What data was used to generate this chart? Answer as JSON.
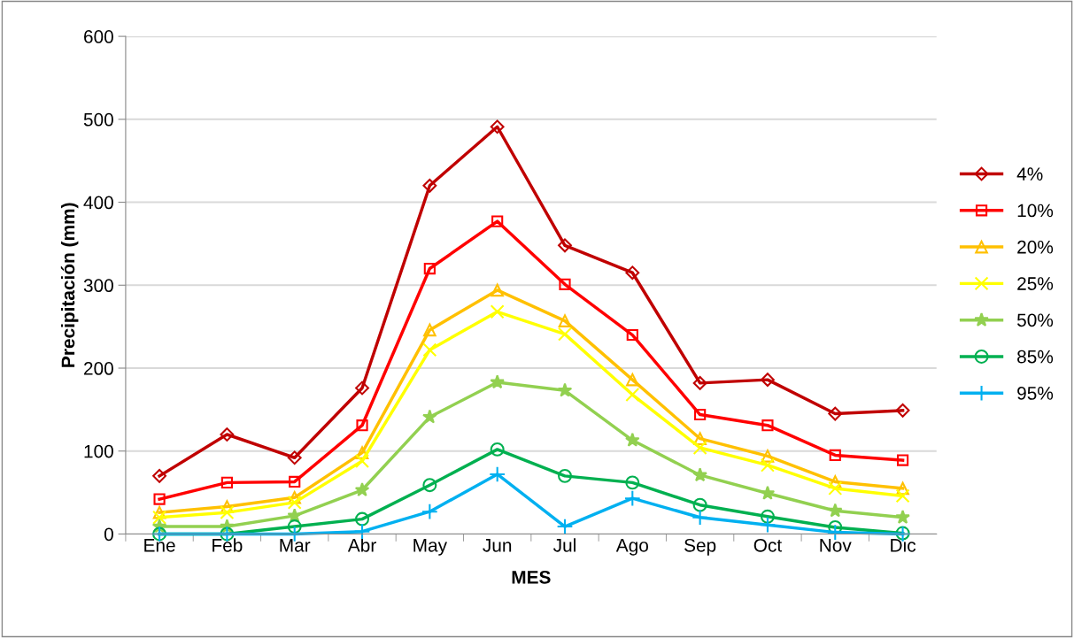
{
  "chart_data": {
    "type": "line",
    "xlabel": "MES",
    "ylabel": "Precipitación (mm)",
    "categories": [
      "Ene",
      "Feb",
      "Mar",
      "Abr",
      "May",
      "Jun",
      "Jul",
      "Ago",
      "Sep",
      "Oct",
      "Nov",
      "Dic"
    ],
    "series": [
      {
        "name": "4%",
        "color": "#c00000",
        "marker": "diamond",
        "values": [
          70,
          120,
          92,
          176,
          420,
          491,
          348,
          315,
          182,
          186,
          145,
          149
        ]
      },
      {
        "name": "10%",
        "color": "#ff0000",
        "marker": "square",
        "values": [
          42,
          62,
          63,
          131,
          320,
          377,
          301,
          240,
          144,
          131,
          95,
          89
        ]
      },
      {
        "name": "20%",
        "color": "#ffc000",
        "marker": "triangle",
        "values": [
          26,
          33,
          44,
          98,
          246,
          294,
          257,
          186,
          115,
          94,
          63,
          55
        ]
      },
      {
        "name": "25%",
        "color": "#ffff00",
        "marker": "cross",
        "values": [
          20,
          26,
          38,
          88,
          222,
          268,
          241,
          168,
          104,
          83,
          55,
          46
        ]
      },
      {
        "name": "50%",
        "color": "#92d050",
        "marker": "star",
        "values": [
          9,
          9,
          22,
          53,
          141,
          183,
          173,
          113,
          71,
          49,
          28,
          20
        ]
      },
      {
        "name": "85%",
        "color": "#00b050",
        "marker": "circle",
        "values": [
          0,
          0,
          9,
          18,
          59,
          102,
          70,
          62,
          35,
          21,
          8,
          1
        ]
      },
      {
        "name": "95%",
        "color": "#00b0f0",
        "marker": "plus",
        "values": [
          0,
          0,
          0,
          3,
          27,
          72,
          9,
          43,
          20,
          11,
          2,
          0
        ]
      }
    ],
    "ylim": [
      0,
      600
    ],
    "yticks": [
      0,
      100,
      200,
      300,
      400,
      500,
      600
    ],
    "grid": "y",
    "legend": "right",
    "line_style": "solid"
  }
}
